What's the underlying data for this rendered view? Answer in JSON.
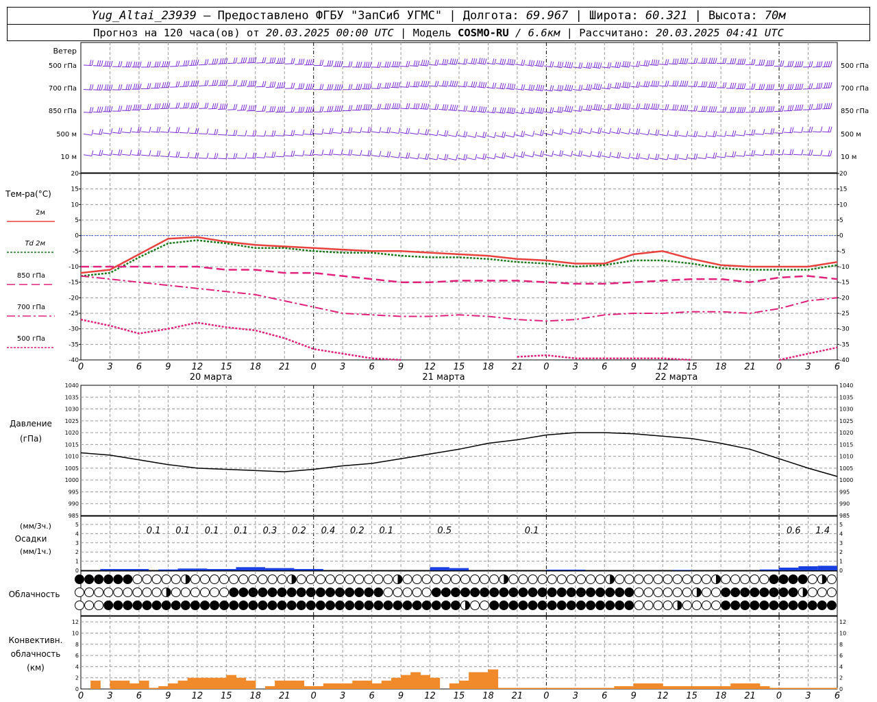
{
  "header": {
    "station": "Yug_Altai_23939",
    "provider": " — Предоставлено ФГБУ \"ЗапСиб УГМС\" | Долгота: ",
    "lon": "69.967",
    "lat_label": " | Широта: ",
    "lat": "60.321",
    "alt_label": " | Высота: ",
    "alt": "70м",
    "forecast_label": "Прогноз на 120 часа(ов) от ",
    "forecast_time": "20.03.2025 00:00 UTC",
    "model_label": "  | Модель ",
    "model": "COSMO-RU",
    "res": " / 6.6км",
    "calc_label": " | Рассчитано: ",
    "calc_time": "20.03.2025 04:41 UTC"
  },
  "colors": {
    "t2m": "#e8413c",
    "td2m": "#1a7a1a",
    "t850": "#e0207a",
    "t700": "#e0207a",
    "t500": "#e0207a",
    "pressure": "#000000",
    "precip": "#1a3fe0",
    "conv": "#f08a2a",
    "wind": "#7a2ad4",
    "zero_line": "#3050e0"
  },
  "wind_panel": {
    "title": "Ветер",
    "levels": [
      "500 гПа",
      "700 гПа",
      "850 гПа",
      "500 м",
      "10  м"
    ]
  },
  "temp_panel": {
    "title": "Тем-ра(°С)",
    "legend": [
      "2м",
      "Td  2м",
      "850 гПа",
      "700 гПа",
      "500 гПа"
    ],
    "yticks": [
      "20",
      "15",
      "10",
      "5",
      "0",
      "-5",
      "-10",
      "-15",
      "-20",
      "-25",
      "-30",
      "-35",
      "-40"
    ]
  },
  "x_axis": {
    "hour_labels": [
      "0",
      "3",
      "6",
      "9",
      "12",
      "15",
      "18",
      "21",
      "0",
      "3",
      "6",
      "9",
      "12",
      "15",
      "18",
      "21",
      "0",
      "3",
      "6",
      "9",
      "12",
      "15",
      "18",
      "21",
      "0",
      "3",
      "6"
    ],
    "day_labels": [
      "20 марта",
      "21 марта",
      "22 марта"
    ]
  },
  "pressure_panel": {
    "title1": "Давление",
    "title2": "(гПа)",
    "yticks": [
      "1040",
      "1035",
      "1030",
      "1025",
      "1020",
      "1015",
      "1010",
      "1005",
      "1000",
      "995",
      "990",
      "985"
    ]
  },
  "precip_panel": {
    "l1": "(мм/3ч.)",
    "l2": "Осадки",
    "l3": "(мм/1ч.)",
    "yticks": [
      "5",
      "4",
      "3",
      "2",
      "1",
      "0"
    ],
    "labels": [
      "0.1",
      "0.1",
      "0.1",
      "0.1",
      "0.3",
      "0.2",
      "0.4",
      "0.2",
      "0.1",
      "0.5",
      "0.1",
      "0.6",
      "1.4"
    ]
  },
  "cloud_panel": {
    "title": "Облачность"
  },
  "conv_panel": {
    "l1": "Конвективн.",
    "l2": "облачность",
    "l3": "(км)",
    "yticks": [
      "12",
      "10",
      "8",
      "6",
      "4",
      "2",
      "0"
    ]
  },
  "chart_data": {
    "type": "line",
    "x_hours": [
      0,
      3,
      6,
      9,
      12,
      15,
      18,
      21,
      24,
      27,
      30,
      33,
      36,
      39,
      42,
      45,
      48,
      51,
      54,
      57,
      60,
      63,
      66,
      69,
      72,
      75,
      78
    ],
    "x_labels": [
      "0",
      "3",
      "6",
      "9",
      "12",
      "15",
      "18",
      "21",
      "0",
      "3",
      "6",
      "9",
      "12",
      "15",
      "18",
      "21",
      "0",
      "3",
      "6",
      "9",
      "12",
      "15",
      "18",
      "21",
      "0",
      "3",
      "6"
    ],
    "ylim_temp": [
      -40,
      20
    ],
    "ylim_pressure": [
      985,
      1040
    ],
    "series": [
      {
        "name": "2м",
        "values": [
          -12,
          -11,
          -6,
          -1,
          -0.5,
          -2,
          -3,
          -3.5,
          -4,
          -4.5,
          -5,
          -5,
          -5.5,
          -6,
          -6.5,
          -7.5,
          -8,
          -9,
          -9,
          -6,
          -5,
          -7.5,
          -9.5,
          -10,
          -10,
          -10,
          -8.5
        ]
      },
      {
        "name": "Td  2м",
        "values": [
          -13,
          -12,
          -7,
          -2.5,
          -1.5,
          -2.5,
          -4,
          -4,
          -5,
          -5.5,
          -5.5,
          -6.5,
          -7,
          -7,
          -7.5,
          -8.5,
          -9,
          -10,
          -9.5,
          -8,
          -8,
          -9,
          -10.5,
          -11,
          -11,
          -11,
          -9.5
        ]
      },
      {
        "name": "850 гПа",
        "values": [
          -10,
          -10,
          -10,
          -10,
          -10,
          -11,
          -11,
          -12,
          -12,
          -13,
          -14,
          -15,
          -15,
          -14.5,
          -14.5,
          -14.5,
          -15,
          -15.5,
          -15.5,
          -15,
          -14.5,
          -14,
          -14,
          -15,
          -13.5,
          -13,
          -14
        ]
      },
      {
        "name": "700 гПа",
        "values": [
          -13,
          -14,
          -15,
          -16,
          -17,
          -18,
          -19,
          -21,
          -23,
          -25,
          -25.5,
          -26,
          -26,
          -25.5,
          -26,
          -27,
          -27.5,
          -27,
          -25.5,
          -25,
          -25,
          -24.5,
          -24.5,
          -25,
          -23.5,
          -21,
          -20
        ]
      },
      {
        "name": "500 гПа",
        "values": [
          -27,
          -29,
          -31.5,
          -30,
          -28,
          -29.5,
          -30.5,
          -33,
          -36.5,
          -38,
          -39.5,
          -40,
          null,
          null,
          null,
          -39,
          -38.5,
          -39.5,
          -39.5,
          -39.5,
          -39.5,
          -40,
          null,
          null,
          -40,
          -38,
          -36
        ]
      },
      {
        "name": "Давление",
        "values": [
          1011.5,
          1010.5,
          1008.5,
          1006.5,
          1005,
          1004.5,
          1004,
          1003.5,
          1004.5,
          1006,
          1007,
          1009,
          1011,
          1013,
          1015.5,
          1017,
          1019,
          1020,
          1020,
          1019.5,
          1018.5,
          1017.5,
          1015.5,
          1013,
          1009,
          1005,
          1001.5
        ]
      }
    ],
    "precip_3h": [
      0.1,
      0.1,
      0.1,
      0.1,
      0.3,
      0.2,
      0.4,
      0.2,
      0.1,
      0.5,
      0.1,
      0.6,
      1.4
    ]
  }
}
